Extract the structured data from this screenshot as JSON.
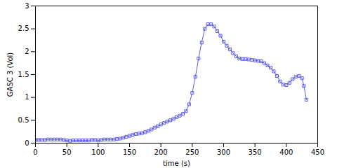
{
  "chart_data": {
    "type": "line",
    "x_label": "time (s)",
    "y_label": "GASC 3 (Vol)",
    "color": "#5b5bee",
    "marker": "square",
    "x": [
      0,
      5,
      10,
      15,
      20,
      25,
      30,
      35,
      40,
      45,
      50,
      55,
      60,
      65,
      70,
      75,
      80,
      85,
      90,
      95,
      100,
      105,
      110,
      115,
      120,
      125,
      130,
      135,
      140,
      145,
      150,
      155,
      160,
      165,
      170,
      175,
      180,
      185,
      190,
      195,
      200,
      205,
      210,
      215,
      220,
      225,
      230,
      235,
      240,
      245,
      250,
      255,
      260,
      265,
      270,
      275,
      280,
      285,
      290,
      295,
      300,
      305,
      310,
      315,
      320,
      325,
      330,
      335,
      340,
      345,
      350,
      355,
      360,
      365,
      370,
      375,
      380,
      385,
      390,
      395,
      400,
      405,
      410,
      415,
      420,
      425,
      428,
      432
    ],
    "values": [
      0.07,
      0.07,
      0.07,
      0.07,
      0.08,
      0.08,
      0.08,
      0.08,
      0.08,
      0.07,
      0.06,
      0.05,
      0.06,
      0.06,
      0.06,
      0.06,
      0.06,
      0.06,
      0.07,
      0.07,
      0.06,
      0.07,
      0.08,
      0.08,
      0.08,
      0.08,
      0.09,
      0.1,
      0.12,
      0.14,
      0.16,
      0.18,
      0.2,
      0.21,
      0.22,
      0.24,
      0.27,
      0.3,
      0.34,
      0.37,
      0.41,
      0.44,
      0.47,
      0.5,
      0.53,
      0.57,
      0.6,
      0.64,
      0.7,
      0.85,
      1.1,
      1.45,
      1.85,
      2.2,
      2.5,
      2.6,
      2.6,
      2.55,
      2.45,
      2.35,
      2.22,
      2.13,
      2.05,
      1.97,
      1.9,
      1.85,
      1.84,
      1.84,
      1.83,
      1.82,
      1.81,
      1.8,
      1.79,
      1.75,
      1.7,
      1.65,
      1.57,
      1.47,
      1.35,
      1.28,
      1.27,
      1.32,
      1.4,
      1.45,
      1.47,
      1.42,
      1.25,
      0.95
    ],
    "xlim": [
      0,
      450
    ],
    "xticks": [
      0,
      50,
      100,
      150,
      200,
      250,
      300,
      350,
      400,
      450
    ],
    "ylim": [
      0,
      3
    ],
    "yticks": [
      0,
      0.5,
      1,
      1.5,
      2,
      2.5,
      3
    ],
    "grid": false
  }
}
